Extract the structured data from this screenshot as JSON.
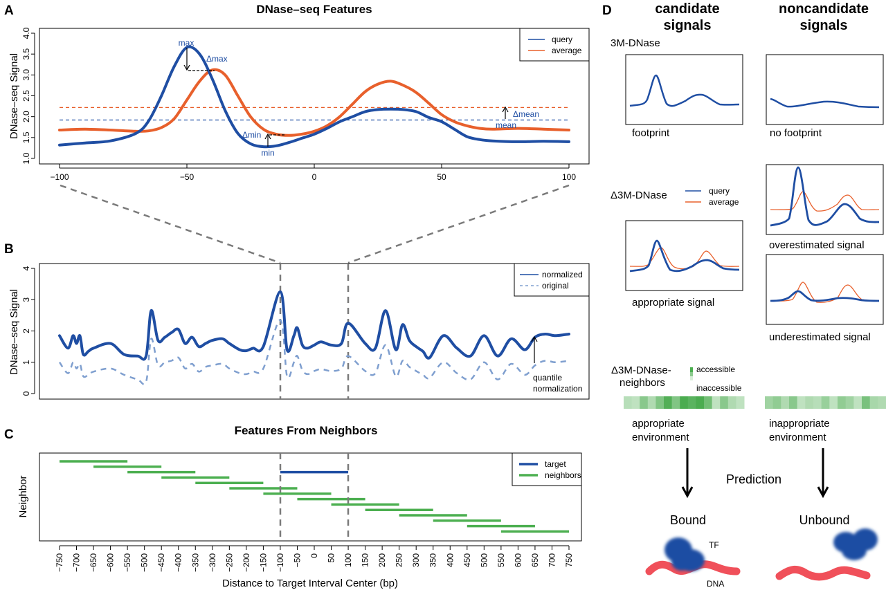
{
  "colors": {
    "query": "#1f4ea3",
    "average": "#e8602c",
    "normalized": "#1f4ea3",
    "original": "#7f9fcf",
    "target": "#1f4ea3",
    "neighbors": "#4caf50",
    "guide": "#7a7a7a",
    "dna": "#f0505a",
    "tf": "#1f4ea3"
  },
  "chart_data": [
    {
      "id": "A",
      "panel_letter": "A",
      "type": "line",
      "title": "DNase–seq Features",
      "xlabel": "",
      "ylabel": "DNase–seq Signal",
      "xlim": [
        -100,
        100
      ],
      "ylim": [
        1.0,
        4.0
      ],
      "xticks": [
        -100,
        -50,
        0,
        50,
        100
      ],
      "xtick_labels": [
        "−100",
        "−50",
        "0",
        "50",
        "100"
      ],
      "yticks": [
        1.0,
        1.5,
        2.0,
        2.5,
        3.0,
        3.5,
        4.0
      ],
      "ytick_labels": [
        "1.0",
        "1.5",
        "2.0",
        "2.5",
        "3.0",
        "3.5",
        "4.0"
      ],
      "legend": {
        "position": "top-right",
        "entries": [
          "query",
          "average"
        ]
      },
      "series": [
        {
          "name": "query",
          "x": [
            -100,
            -90,
            -80,
            -70,
            -65,
            -60,
            -55,
            -50,
            -45,
            -40,
            -35,
            -30,
            -25,
            -20,
            -15,
            -10,
            -5,
            0,
            5,
            10,
            15,
            20,
            25,
            30,
            35,
            40,
            45,
            50,
            55,
            60,
            65,
            70,
            80,
            90,
            100
          ],
          "y": [
            1.32,
            1.37,
            1.42,
            1.6,
            1.9,
            2.5,
            3.2,
            3.66,
            3.5,
            2.9,
            2.15,
            1.6,
            1.35,
            1.28,
            1.3,
            1.38,
            1.48,
            1.58,
            1.72,
            1.88,
            2.0,
            2.12,
            2.17,
            2.18,
            2.17,
            2.12,
            1.98,
            1.88,
            1.7,
            1.52,
            1.45,
            1.42,
            1.4,
            1.41,
            1.4
          ]
        },
        {
          "name": "average",
          "x": [
            -100,
            -90,
            -80,
            -70,
            -65,
            -60,
            -55,
            -50,
            -45,
            -40,
            -35,
            -30,
            -25,
            -20,
            -15,
            -10,
            -5,
            0,
            5,
            10,
            15,
            20,
            25,
            30,
            35,
            40,
            45,
            50,
            55,
            60,
            65,
            70,
            80,
            90,
            100
          ],
          "y": [
            1.68,
            1.7,
            1.68,
            1.65,
            1.66,
            1.74,
            1.95,
            2.4,
            2.85,
            3.12,
            3.0,
            2.5,
            2.0,
            1.7,
            1.58,
            1.55,
            1.58,
            1.65,
            1.78,
            2.0,
            2.3,
            2.6,
            2.78,
            2.85,
            2.75,
            2.58,
            2.32,
            2.05,
            1.88,
            1.78,
            1.72,
            1.7,
            1.72,
            1.7,
            1.68
          ]
        }
      ],
      "reference_lines": [
        {
          "name": "query-mean",
          "y": 1.92,
          "style": "dashed",
          "color_key": "query"
        },
        {
          "name": "average-mean",
          "y": 2.22,
          "style": "dashed",
          "color_key": "average"
        }
      ],
      "annotations": [
        {
          "text": "max",
          "x": -50,
          "y": 3.66
        },
        {
          "text": "Δmax",
          "x": -38,
          "y": 3.3
        },
        {
          "text": "Δmin",
          "x": -23,
          "y": 1.55
        },
        {
          "text": "min",
          "x": -18,
          "y": 1.12
        },
        {
          "text": "Δmean",
          "x": 79,
          "y": 2.08
        },
        {
          "text": "mean",
          "x": 74,
          "y": 1.83
        }
      ]
    },
    {
      "id": "B",
      "panel_letter": "B",
      "type": "line",
      "title": "",
      "xlabel": "",
      "ylabel": "DNase–seq Signal",
      "xlim": [
        -750,
        750
      ],
      "ylim": [
        0,
        4
      ],
      "yticks": [
        0,
        1,
        2,
        3,
        4
      ],
      "ytick_labels": [
        "0",
        "1",
        "2",
        "3",
        "4"
      ],
      "legend": {
        "position": "top-right",
        "entries": [
          "normalized",
          "original"
        ]
      },
      "series": [
        {
          "name": "normalized",
          "x": [
            -750,
            -725,
            -710,
            -700,
            -690,
            -680,
            -665,
            -650,
            -600,
            -560,
            -520,
            -495,
            -480,
            -460,
            -440,
            -420,
            -400,
            -380,
            -360,
            -340,
            -320,
            -300,
            -270,
            -250,
            -220,
            -200,
            -180,
            -150,
            -100,
            -80,
            -60,
            -50,
            -35,
            -20,
            0,
            20,
            50,
            80,
            100,
            150,
            180,
            210,
            240,
            260,
            280,
            300,
            320,
            340,
            380,
            420,
            460,
            500,
            540,
            580,
            620,
            650,
            680,
            710,
            750
          ],
          "y": [
            1.85,
            1.45,
            1.85,
            1.6,
            1.85,
            1.25,
            1.35,
            1.45,
            1.6,
            1.25,
            1.2,
            1.2,
            2.65,
            1.7,
            1.8,
            1.95,
            2.05,
            1.6,
            1.8,
            1.5,
            1.6,
            1.7,
            1.75,
            1.6,
            1.4,
            1.37,
            1.45,
            1.5,
            3.25,
            1.4,
            1.85,
            2.1,
            1.55,
            1.45,
            1.55,
            1.65,
            1.55,
            1.6,
            2.25,
            1.6,
            1.45,
            2.65,
            1.4,
            2.2,
            1.7,
            1.5,
            1.35,
            1.15,
            1.85,
            1.45,
            1.2,
            1.85,
            1.2,
            1.75,
            1.4,
            1.8,
            1.9,
            1.85,
            1.9
          ]
        },
        {
          "name": "original",
          "x": [
            -750,
            -725,
            -710,
            -700,
            -690,
            -680,
            -665,
            -650,
            -600,
            -560,
            -520,
            -495,
            -480,
            -460,
            -440,
            -420,
            -400,
            -380,
            -360,
            -340,
            -320,
            -300,
            -270,
            -250,
            -220,
            -200,
            -180,
            -150,
            -100,
            -80,
            -60,
            -50,
            -35,
            -20,
            0,
            20,
            50,
            80,
            100,
            150,
            180,
            210,
            240,
            260,
            280,
            300,
            320,
            340,
            380,
            420,
            460,
            500,
            540,
            580,
            620,
            650,
            680,
            710,
            750
          ],
          "y": [
            1.0,
            0.65,
            1.0,
            0.8,
            0.95,
            0.55,
            0.6,
            0.7,
            0.8,
            0.6,
            0.45,
            0.38,
            1.75,
            0.9,
            1.0,
            1.05,
            1.15,
            0.8,
            0.95,
            0.7,
            0.85,
            0.9,
            0.95,
            0.8,
            0.65,
            0.62,
            0.7,
            0.8,
            2.35,
            0.55,
            1.0,
            1.2,
            0.75,
            0.62,
            0.72,
            0.78,
            0.72,
            0.8,
            1.2,
            0.72,
            0.65,
            1.55,
            0.55,
            1.05,
            0.85,
            0.72,
            0.6,
            0.5,
            1.0,
            0.65,
            0.45,
            1.0,
            0.45,
            0.95,
            0.6,
            0.9,
            1.05,
            1.0,
            1.05
          ]
        }
      ],
      "annotations": [
        {
          "text": "quantile",
          "x": 650,
          "y": 0.45
        },
        {
          "text": "normalization",
          "x": 650,
          "y": 0.1
        }
      ]
    },
    {
      "id": "C",
      "panel_letter": "C",
      "type": "bar",
      "subtype": "interval",
      "title": "Features From Neighbors",
      "xlabel": "Distance to Target Interval Center (bp)",
      "ylabel": "Neighbor",
      "xlim": [
        -750,
        750
      ],
      "xticks": [
        -750,
        -700,
        -650,
        -600,
        -550,
        -500,
        -450,
        -400,
        -350,
        -300,
        -250,
        -200,
        -150,
        -100,
        -50,
        0,
        50,
        100,
        150,
        200,
        250,
        300,
        350,
        400,
        450,
        500,
        550,
        600,
        650,
        700,
        750
      ],
      "xtick_labels": [
        "−750",
        "−700",
        "−650",
        "−600",
        "−550",
        "−500",
        "−450",
        "−400",
        "−350",
        "−300",
        "−250",
        "−200",
        "−150",
        "−100",
        "−50",
        "0",
        "50",
        "100",
        "150",
        "200",
        "250",
        "300",
        "350",
        "400",
        "450",
        "500",
        "550",
        "600",
        "650",
        "700",
        "750"
      ],
      "legend": {
        "position": "top-right",
        "entries": [
          "target",
          "neighbors"
        ]
      },
      "target": {
        "start": -100,
        "end": 100,
        "row": 3
      },
      "neighbors": [
        {
          "start": -750,
          "end": -550,
          "row": 1
        },
        {
          "start": -650,
          "end": -450,
          "row": 2
        },
        {
          "start": -550,
          "end": -350,
          "row": 3
        },
        {
          "start": -450,
          "end": -250,
          "row": 4
        },
        {
          "start": -350,
          "end": -150,
          "row": 5
        },
        {
          "start": -250,
          "end": -50,
          "row": 6
        },
        {
          "start": -150,
          "end": 50,
          "row": 7
        },
        {
          "start": -50,
          "end": 150,
          "row": 8
        },
        {
          "start": 50,
          "end": 250,
          "row": 9
        },
        {
          "start": 150,
          "end": 350,
          "row": 10
        },
        {
          "start": 250,
          "end": 450,
          "row": 11
        },
        {
          "start": 350,
          "end": 550,
          "row": 12
        },
        {
          "start": 450,
          "end": 650,
          "row": 13
        },
        {
          "start": 550,
          "end": 750,
          "row": 14
        }
      ],
      "reference_lines": [
        {
          "x": -100,
          "style": "dashed"
        },
        {
          "x": 100,
          "style": "dashed"
        }
      ]
    }
  ],
  "panelD": {
    "letter": "D",
    "col1_title_line1": "candidate",
    "col1_title_line2": "signals",
    "col2_title_line1": "noncandidate",
    "col2_title_line2": "signals",
    "row1_label": "3M-DNase",
    "footprint_label": "footprint",
    "no_footprint_label": "no footprint",
    "row2_label": "Δ3M-DNase",
    "legend_query": "query",
    "legend_average": "average",
    "appropriate_signal_label": "appropriate signal",
    "overestimated_label": "overestimated signal",
    "underestimated_label": "underestimated signal",
    "row3_label_line1": "Δ3M-DNase-",
    "row3_label_line2": "neighbors",
    "scale_high": "accessible",
    "scale_low": "inaccessible",
    "heat_appropriate": [
      0.25,
      0.2,
      0.55,
      0.3,
      0.6,
      0.9,
      0.6,
      0.95,
      0.85,
      0.95,
      0.7,
      0.2,
      0.55,
      0.3,
      0.2
    ],
    "heat_inappropriate": [
      0.4,
      0.5,
      0.3,
      0.55,
      0.2,
      0.3,
      0.25,
      0.45,
      0.2,
      0.5,
      0.4,
      0.2,
      0.65,
      0.35,
      0.3
    ],
    "appropriate_env_line1": "appropriate",
    "appropriate_env_line2": "environment",
    "inappropriate_env_line1": "inappropriate",
    "inappropriate_env_line2": "environment",
    "prediction_label": "Prediction",
    "bound_label": "Bound",
    "unbound_label": "Unbound",
    "tf_label": "TF",
    "dna_label": "DNA"
  }
}
